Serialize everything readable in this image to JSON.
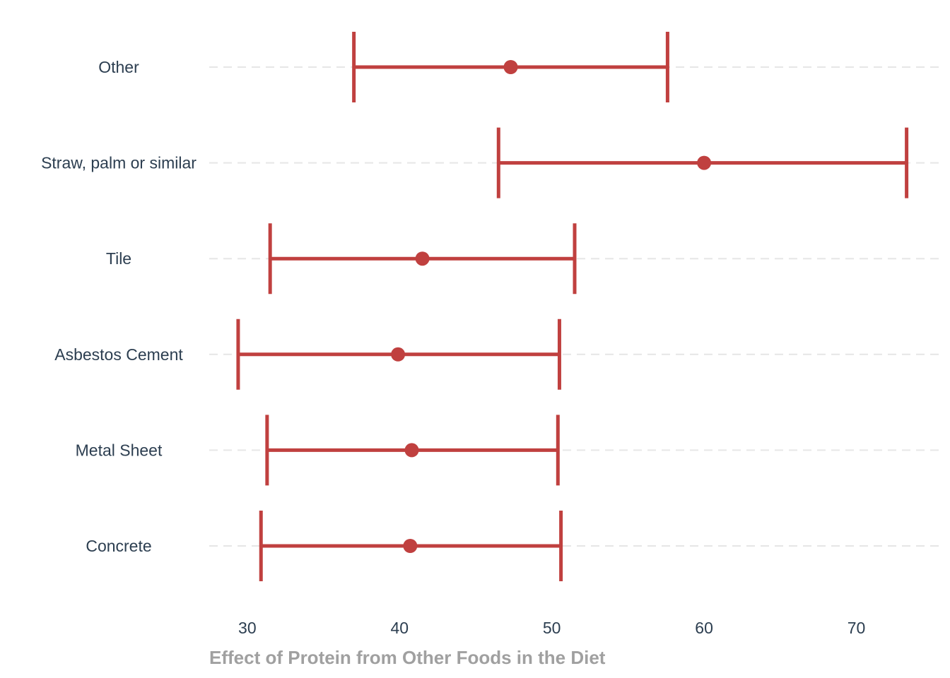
{
  "chart_data": {
    "type": "errorbar",
    "title": "",
    "xlabel": "Effect of Protein from Other Foods in the Diet",
    "ylabel": "",
    "xlim": [
      27.5,
      75.5
    ],
    "xticks": [
      30,
      40,
      50,
      60,
      70
    ],
    "grid": "horizontal dashed",
    "categories": [
      "Other",
      "Straw, palm or similar",
      "Tile",
      "Asbestos Cement",
      "Metal Sheet",
      "Concrete"
    ],
    "series": [
      {
        "estimate": [
          47.3,
          60.0,
          41.5,
          39.9,
          40.8,
          40.7
        ],
        "lower": [
          37.0,
          46.5,
          31.5,
          29.4,
          31.3,
          30.9
        ],
        "upper": [
          57.6,
          73.3,
          51.5,
          50.5,
          50.4,
          50.6
        ]
      }
    ],
    "color": "#c0403f"
  }
}
